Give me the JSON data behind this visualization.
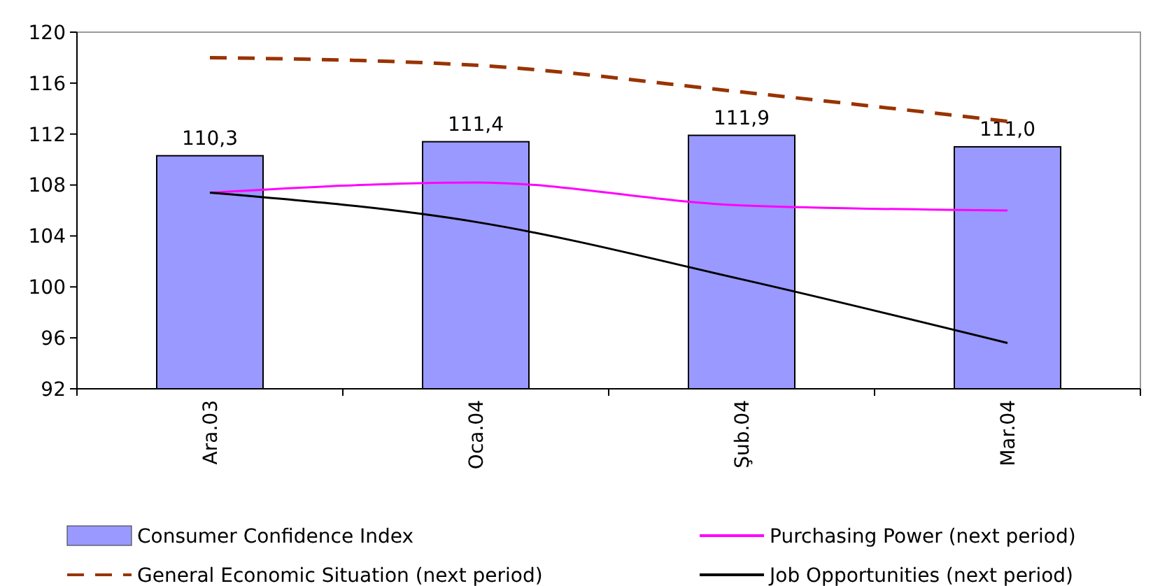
{
  "chart_data": {
    "type": "bar",
    "categories": [
      "Ara.03",
      "Oca.04",
      "Şub.04",
      "Mar.04"
    ],
    "ylim": [
      92,
      120
    ],
    "yticks": [
      92,
      96,
      100,
      104,
      108,
      112,
      116,
      120
    ],
    "legend": "bottom",
    "grid": false,
    "series": [
      {
        "name": "Consumer Confidence Index",
        "color": "#9999ff",
        "values": [
          110.3,
          111.4,
          111.9,
          111.0
        ],
        "value_labels": [
          "110,3",
          "111,4",
          "111,9",
          "111,0"
        ]
      },
      {
        "name": "Purchasing Power (next period)",
        "type": "line",
        "color": "#ff00ff",
        "line_style": "solid",
        "values": [
          107.4,
          108.2,
          106.4,
          106.0
        ]
      },
      {
        "name": "General Economic Situation (next period)",
        "type": "line",
        "color": "#993300",
        "line_style": "dashed",
        "values": [
          118.0,
          117.4,
          115.3,
          113.0
        ]
      },
      {
        "name": "Job Opportunities (next period)",
        "type": "line",
        "color": "#000000",
        "line_style": "solid",
        "values": [
          107.4,
          105.1,
          100.6,
          95.6
        ]
      }
    ]
  }
}
